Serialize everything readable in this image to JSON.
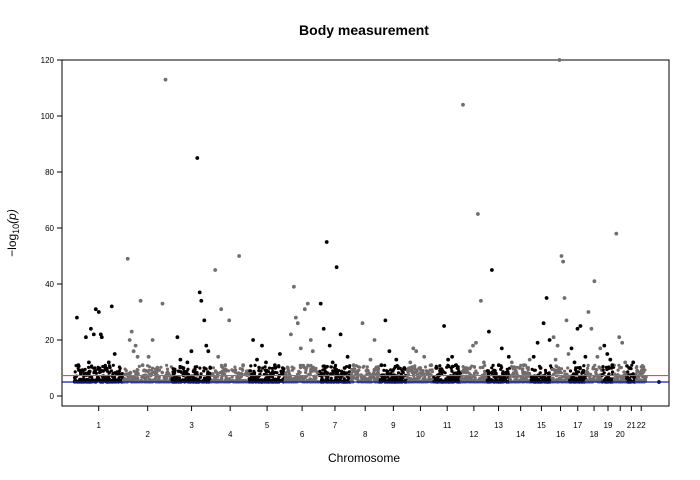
{
  "chart_data": {
    "type": "scatter",
    "title": "Body measurement",
    "xlabel": "Chromosome",
    "ylabel": "−log",
    "ylabel_sub": "10",
    "ylabel_var": "(p)",
    "ylim": [
      0,
      120
    ],
    "yticks": [
      0,
      20,
      40,
      60,
      80,
      100,
      120
    ],
    "grid": false,
    "legend": "none",
    "colors": {
      "odd": "#000000",
      "even": "#6e6e6e",
      "genome_wide": "#e05050",
      "suggestive": "#1a1aa0"
    },
    "threshold_lines": [
      {
        "y": 7.3,
        "color": "#e05050"
      },
      {
        "y": 5.0,
        "color": "#1a1aa0"
      }
    ],
    "chromosomes": [
      {
        "label": "1",
        "start": 0,
        "end": 249,
        "row": 0
      },
      {
        "label": "2",
        "start": 249,
        "end": 492,
        "row": 1
      },
      {
        "label": "3",
        "start": 492,
        "end": 690,
        "row": 0
      },
      {
        "label": "4",
        "start": 690,
        "end": 880,
        "row": 1
      },
      {
        "label": "5",
        "start": 880,
        "end": 1061,
        "row": 0
      },
      {
        "label": "6",
        "start": 1061,
        "end": 1232,
        "row": 1
      },
      {
        "label": "7",
        "start": 1232,
        "end": 1391,
        "row": 0
      },
      {
        "label": "8",
        "start": 1391,
        "end": 1536,
        "row": 1
      },
      {
        "label": "9",
        "start": 1536,
        "end": 1674,
        "row": 0
      },
      {
        "label": "10",
        "start": 1674,
        "end": 1808,
        "row": 1
      },
      {
        "label": "11",
        "start": 1808,
        "end": 1943,
        "row": 0
      },
      {
        "label": "12",
        "start": 1943,
        "end": 2076,
        "row": 1
      },
      {
        "label": "13",
        "start": 2076,
        "end": 2191,
        "row": 0
      },
      {
        "label": "14",
        "start": 2191,
        "end": 2298,
        "row": 1
      },
      {
        "label": "15",
        "start": 2298,
        "end": 2400,
        "row": 0
      },
      {
        "label": "16",
        "start": 2400,
        "end": 2490,
        "row": 1
      },
      {
        "label": "17",
        "start": 2490,
        "end": 2573,
        "row": 0
      },
      {
        "label": "18",
        "start": 2573,
        "end": 2654,
        "row": 1
      },
      {
        "label": "19",
        "start": 2654,
        "end": 2713,
        "row": 0
      },
      {
        "label": "20",
        "start": 2713,
        "end": 2777,
        "row": 1
      },
      {
        "label": "21",
        "start": 2777,
        "end": 2825,
        "row": 0
      },
      {
        "label": "22",
        "start": 2825,
        "end": 2876,
        "row": 0
      }
    ],
    "xlim": [
      -60,
      2990
    ],
    "points": [
      [
        15,
        28
      ],
      [
        22,
        11
      ],
      [
        35,
        8
      ],
      [
        45,
        9
      ],
      [
        60,
        21
      ],
      [
        75,
        12
      ],
      [
        85,
        24
      ],
      [
        100,
        22
      ],
      [
        110,
        31
      ],
      [
        125,
        30
      ],
      [
        135,
        22
      ],
      [
        140,
        21
      ],
      [
        160,
        10
      ],
      [
        175,
        12
      ],
      [
        190,
        32
      ],
      [
        205,
        15
      ],
      [
        215,
        8
      ],
      [
        235,
        7
      ],
      [
        270,
        49
      ],
      [
        280,
        20
      ],
      [
        290,
        23
      ],
      [
        300,
        16
      ],
      [
        310,
        18
      ],
      [
        320,
        14
      ],
      [
        335,
        34
      ],
      [
        345,
        11
      ],
      [
        360,
        9
      ],
      [
        375,
        14
      ],
      [
        395,
        20
      ],
      [
        420,
        10
      ],
      [
        445,
        33
      ],
      [
        460,
        113
      ],
      [
        475,
        8
      ],
      [
        520,
        21
      ],
      [
        535,
        13
      ],
      [
        550,
        10
      ],
      [
        570,
        12
      ],
      [
        590,
        16
      ],
      [
        605,
        9
      ],
      [
        620,
        85
      ],
      [
        632,
        37
      ],
      [
        640,
        34
      ],
      [
        655,
        27
      ],
      [
        665,
        18
      ],
      [
        675,
        16
      ],
      [
        685,
        10
      ],
      [
        710,
        45
      ],
      [
        725,
        14
      ],
      [
        740,
        31
      ],
      [
        760,
        11
      ],
      [
        780,
        27
      ],
      [
        800,
        9
      ],
      [
        830,
        50
      ],
      [
        850,
        11
      ],
      [
        870,
        8
      ],
      [
        900,
        20
      ],
      [
        920,
        13
      ],
      [
        945,
        18
      ],
      [
        965,
        12
      ],
      [
        990,
        8
      ],
      [
        1010,
        11
      ],
      [
        1035,
        15
      ],
      [
        1050,
        9
      ],
      [
        1075,
        10
      ],
      [
        1090,
        22
      ],
      [
        1105,
        39
      ],
      [
        1115,
        28
      ],
      [
        1125,
        26
      ],
      [
        1140,
        17
      ],
      [
        1160,
        31
      ],
      [
        1175,
        33
      ],
      [
        1190,
        20
      ],
      [
        1200,
        16
      ],
      [
        1215,
        9
      ],
      [
        1240,
        33
      ],
      [
        1255,
        24
      ],
      [
        1270,
        55
      ],
      [
        1285,
        18
      ],
      [
        1300,
        12
      ],
      [
        1320,
        46
      ],
      [
        1340,
        22
      ],
      [
        1360,
        10
      ],
      [
        1375,
        14
      ],
      [
        1405,
        11
      ],
      [
        1425,
        8
      ],
      [
        1450,
        26
      ],
      [
        1470,
        9
      ],
      [
        1490,
        13
      ],
      [
        1510,
        20
      ],
      [
        1525,
        8
      ],
      [
        1545,
        11
      ],
      [
        1565,
        27
      ],
      [
        1585,
        16
      ],
      [
        1600,
        9
      ],
      [
        1620,
        13
      ],
      [
        1640,
        7
      ],
      [
        1660,
        10
      ],
      [
        1690,
        12
      ],
      [
        1705,
        17
      ],
      [
        1720,
        16
      ],
      [
        1740,
        10
      ],
      [
        1760,
        14
      ],
      [
        1775,
        8
      ],
      [
        1795,
        11
      ],
      [
        1820,
        10
      ],
      [
        1840,
        9
      ],
      [
        1860,
        25
      ],
      [
        1880,
        13
      ],
      [
        1900,
        14
      ],
      [
        1920,
        11
      ],
      [
        1935,
        8
      ],
      [
        1955,
        104
      ],
      [
        1970,
        10
      ],
      [
        1990,
        16
      ],
      [
        2005,
        18
      ],
      [
        2020,
        19
      ],
      [
        2030,
        65
      ],
      [
        2045,
        34
      ],
      [
        2060,
        12
      ],
      [
        2085,
        23
      ],
      [
        2100,
        45
      ],
      [
        2115,
        9
      ],
      [
        2135,
        11
      ],
      [
        2150,
        17
      ],
      [
        2170,
        8
      ],
      [
        2185,
        14
      ],
      [
        2200,
        12
      ],
      [
        2220,
        9
      ],
      [
        2240,
        10
      ],
      [
        2260,
        11
      ],
      [
        2280,
        8
      ],
      [
        2290,
        13
      ],
      [
        2310,
        14
      ],
      [
        2330,
        19
      ],
      [
        2345,
        10
      ],
      [
        2360,
        26
      ],
      [
        2375,
        35
      ],
      [
        2390,
        20
      ],
      [
        2410,
        21
      ],
      [
        2420,
        13
      ],
      [
        2430,
        18
      ],
      [
        2440,
        120
      ],
      [
        2450,
        50
      ],
      [
        2458,
        48
      ],
      [
        2465,
        35
      ],
      [
        2475,
        27
      ],
      [
        2485,
        15
      ],
      [
        2500,
        17
      ],
      [
        2515,
        12
      ],
      [
        2530,
        24
      ],
      [
        2545,
        25
      ],
      [
        2560,
        9
      ],
      [
        2570,
        14
      ],
      [
        2585,
        30
      ],
      [
        2600,
        24
      ],
      [
        2615,
        41
      ],
      [
        2630,
        14
      ],
      [
        2645,
        17
      ],
      [
        2665,
        18
      ],
      [
        2680,
        15
      ],
      [
        2695,
        13
      ],
      [
        2705,
        11
      ],
      [
        2725,
        58
      ],
      [
        2740,
        21
      ],
      [
        2755,
        19
      ],
      [
        2770,
        12
      ],
      [
        2790,
        10
      ],
      [
        2810,
        12
      ],
      [
        2830,
        9
      ],
      [
        2850,
        8
      ],
      [
        2870,
        6
      ],
      [
        2940,
        5
      ]
    ]
  }
}
